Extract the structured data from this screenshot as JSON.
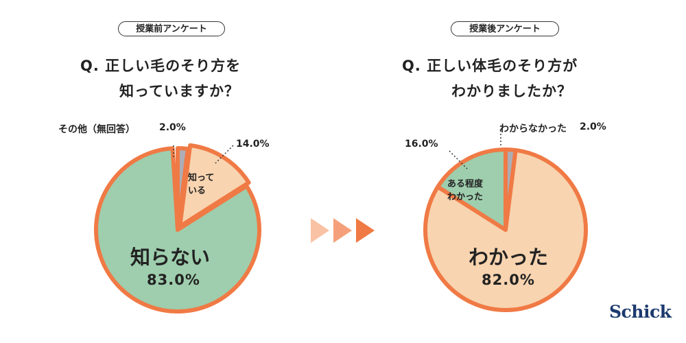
{
  "colors": {
    "orange": "#F07A45",
    "green": "#9ECEAD",
    "peach": "#F8D4B0",
    "gray": "#ADADB5",
    "arrow1": "#F9C2A4",
    "arrow2": "#F5A07A",
    "arrow3": "#F07A45"
  },
  "logo": "Schick",
  "chart_data": [
    {
      "type": "pie",
      "badge": "授業前アンケート",
      "title_lines": [
        "Q. 正しい毛のそり方を",
        "知っていますか？"
      ],
      "slices": [
        {
          "key": "gray",
          "value": 2.0,
          "label": "その他（無回答）",
          "value_text": "2.0%",
          "color": "#ADADB5",
          "exploded": false
        },
        {
          "key": "peach",
          "value": 14.0,
          "label_lines": [
            "知って",
            "いる"
          ],
          "value_text": "14.0%",
          "color": "#F8D4B0",
          "exploded": true
        },
        {
          "key": "green",
          "value": 83.0,
          "label": "知らない",
          "value_text": "83.0%",
          "color": "#9ECEAD",
          "exploded": false
        }
      ]
    },
    {
      "type": "pie",
      "badge": "授業後アンケート",
      "title_lines": [
        "Q. 正しい体毛のそり方が",
        "わかりましたか？"
      ],
      "slices": [
        {
          "key": "gray",
          "value": 2.0,
          "label": "わからなかった",
          "value_text": "2.0%",
          "color": "#ADADB5",
          "exploded": false
        },
        {
          "key": "peach",
          "value": 82.0,
          "label": "わかった",
          "value_text": "82.0%",
          "color": "#F8D4B0",
          "exploded": false
        },
        {
          "key": "green",
          "value": 16.0,
          "label_lines": [
            "ある程度",
            "わかった"
          ],
          "value_text": "16.0%",
          "color": "#9ECEAD",
          "exploded": false
        }
      ]
    }
  ]
}
